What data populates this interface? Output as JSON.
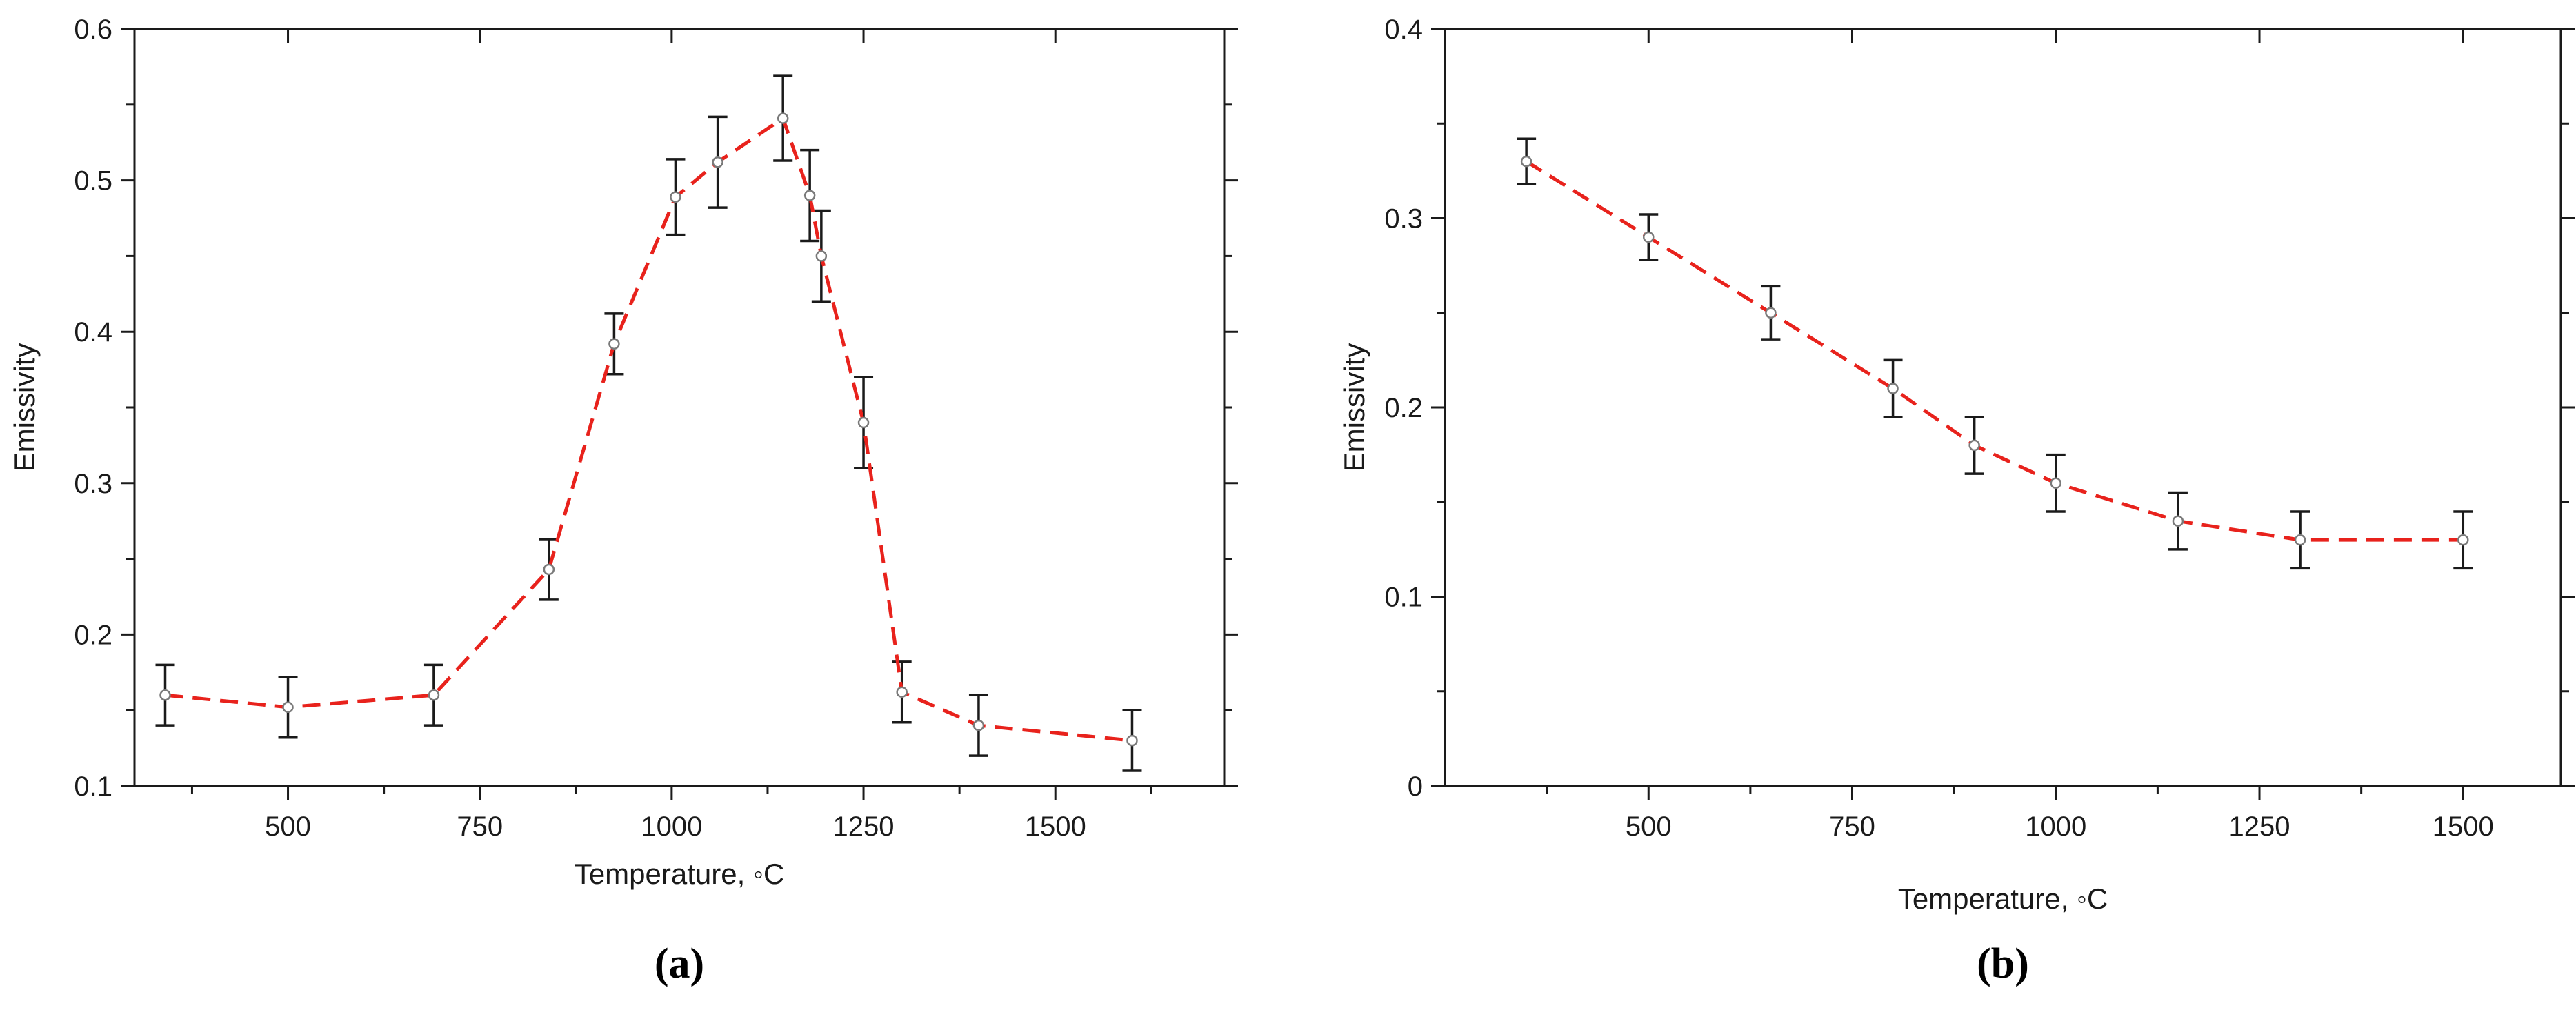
{
  "chart_data": [
    {
      "type": "line",
      "panel_label": "(a)",
      "xlabel": "Temperature, ◦C",
      "ylabel": "Emissivity",
      "xlim": [
        300,
        1720
      ],
      "ylim": [
        0.1,
        0.6
      ],
      "xticks": [
        500,
        750,
        1000,
        1250,
        1500
      ],
      "yticks": [
        0.1,
        0.2,
        0.3,
        0.4,
        0.5,
        0.6
      ],
      "ytick_labels": [
        "0.1",
        "0.2",
        "0.3",
        "0.4",
        "0.5",
        "0.6"
      ],
      "grid": false,
      "line_color": "#e8221c",
      "line_style": "dashed",
      "series": [
        {
          "x": [
            340,
            500,
            690,
            840,
            925,
            1005,
            1060,
            1145,
            1180,
            1195,
            1250,
            1300,
            1400,
            1600
          ],
          "y": [
            0.16,
            0.152,
            0.16,
            0.243,
            0.392,
            0.489,
            0.512,
            0.541,
            0.49,
            0.45,
            0.34,
            0.162,
            0.14,
            0.13
          ],
          "yerr": [
            0.02,
            0.02,
            0.02,
            0.02,
            0.02,
            0.025,
            0.03,
            0.028,
            0.03,
            0.03,
            0.03,
            0.02,
            0.02,
            0.02
          ]
        }
      ]
    },
    {
      "type": "line",
      "panel_label": "(b)",
      "xlabel": "Temperature, ◦C",
      "ylabel": "Emissivity",
      "xlim": [
        250,
        1620
      ],
      "ylim": [
        0,
        0.4
      ],
      "xticks": [
        500,
        750,
        1000,
        1250,
        1500
      ],
      "yticks": [
        0,
        0.1,
        0.2,
        0.3,
        0.4
      ],
      "ytick_labels": [
        "0",
        "0.1",
        "0.2",
        "0.3",
        "0.4"
      ],
      "grid": false,
      "line_color": "#e8221c",
      "line_style": "dashed",
      "series": [
        {
          "x": [
            350,
            500,
            650,
            800,
            900,
            1000,
            1150,
            1300,
            1500
          ],
          "y": [
            0.33,
            0.29,
            0.25,
            0.21,
            0.18,
            0.16,
            0.14,
            0.13,
            0.13
          ],
          "yerr": [
            0.012,
            0.012,
            0.014,
            0.015,
            0.015,
            0.015,
            0.015,
            0.015,
            0.015
          ]
        }
      ]
    }
  ]
}
